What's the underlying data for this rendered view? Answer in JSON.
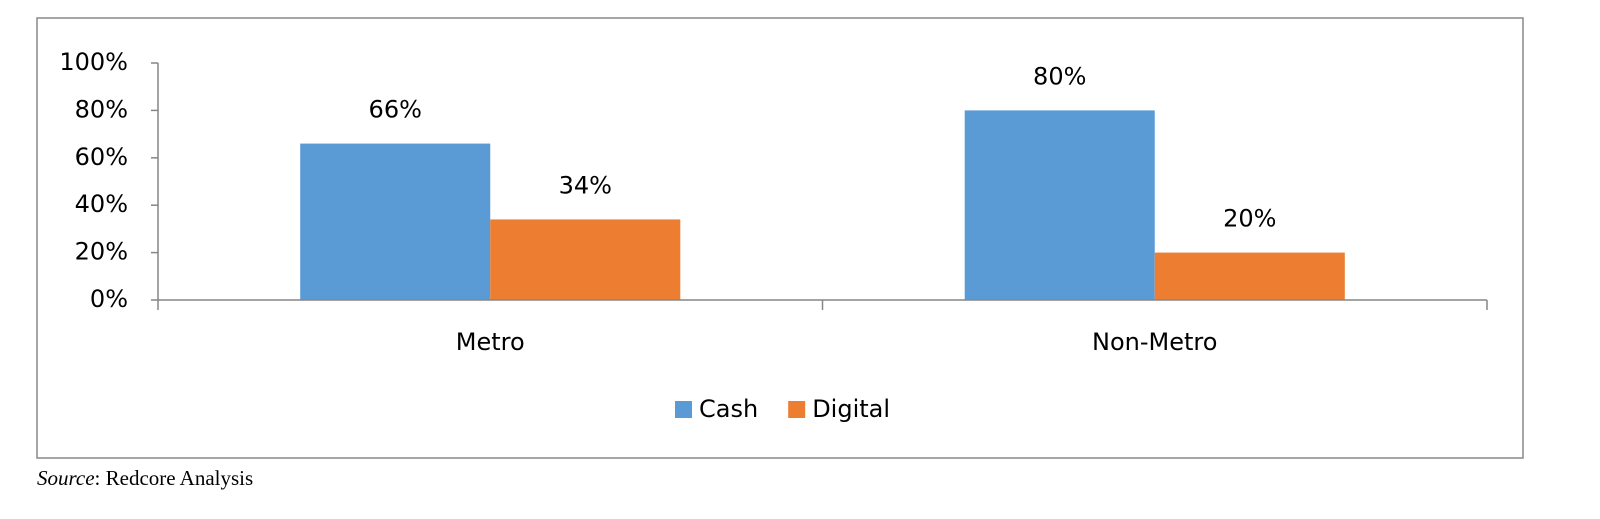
{
  "chart_data": {
    "type": "bar",
    "categories": [
      "Metro",
      "Non-Metro"
    ],
    "series": [
      {
        "name": "Cash",
        "color": "#5b9bd5",
        "values": [
          66,
          80
        ],
        "value_labels": [
          "66%",
          "80%"
        ]
      },
      {
        "name": "Digital",
        "color": "#ed7d31",
        "values": [
          34,
          20
        ],
        "value_labels": [
          "34%",
          "20%"
        ]
      }
    ],
    "ylim": [
      0,
      100
    ],
    "yticks": [
      {
        "value": 0,
        "label": "0%"
      },
      {
        "value": 20,
        "label": "20%"
      },
      {
        "value": 40,
        "label": "40%"
      },
      {
        "value": 60,
        "label": "60%"
      },
      {
        "value": 80,
        "label": "80%"
      },
      {
        "value": 100,
        "label": "100%"
      }
    ],
    "grid": false,
    "legend": "bottom"
  },
  "source": {
    "label": "Source",
    "text": ": Redcore Analysis"
  }
}
